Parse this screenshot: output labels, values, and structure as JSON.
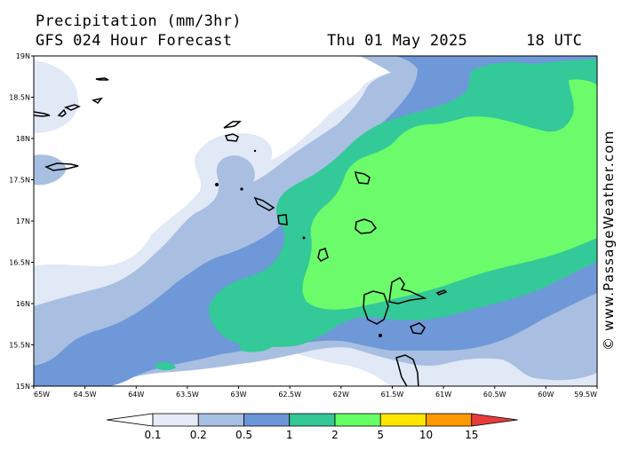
{
  "header": {
    "line1": "Precipitation (mm/3hr)",
    "line2": "GFS 024 Hour Forecast",
    "date": "Thu 01 May 2025",
    "time": "18 UTC"
  },
  "watermark": "© www.PassageWeather.com",
  "axes": {
    "lat_labels": [
      "19N",
      "18.5N",
      "18N",
      "17.5N",
      "17N",
      "16.5N",
      "16N",
      "15.5N",
      "15N"
    ],
    "lon_labels": [
      "65W",
      "64.5W",
      "64W",
      "63.5W",
      "63W",
      "62.5W",
      "62W",
      "61.5W",
      "61W",
      "60.5W",
      "60W",
      "59.5W"
    ],
    "lat_range": [
      15,
      19
    ],
    "lon_range": [
      -65,
      -59.5
    ]
  },
  "legend": {
    "levels": [
      "0.1",
      "0.2",
      "0.5",
      "1",
      "2",
      "5",
      "10",
      "15"
    ],
    "colors": [
      "#ffffff",
      "#e6ebf7",
      "#a7bfe2",
      "#6b96d6",
      "#33c896",
      "#66ff66",
      "#ffe600",
      "#ff9900",
      "#e63c3c"
    ]
  },
  "precip_colors": {
    "c01": "#e1e8f6",
    "c02": "#a9bfe1",
    "c05": "#6f98d8",
    "c1": "#34c998",
    "c2": "#6cfb6a"
  }
}
